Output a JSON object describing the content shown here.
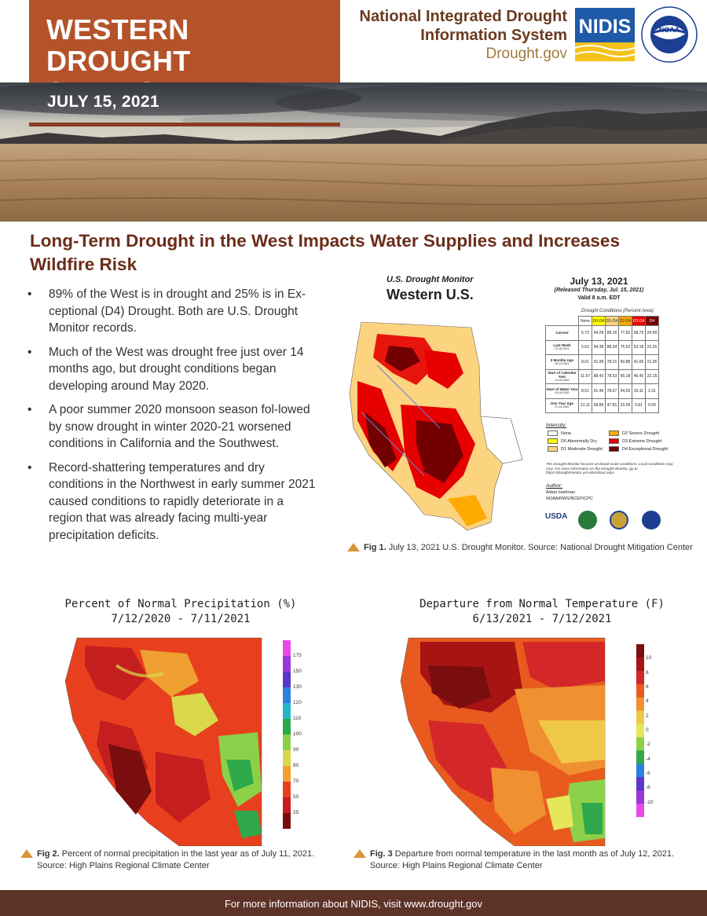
{
  "header": {
    "title_line1": "WESTERN DROUGHT",
    "title_line2": "STATUS UPDATE",
    "org_line1": "National Integrated Drought",
    "org_line2": "Information System",
    "org_url": "Drought.gov",
    "nidis_logo_text": "NIDIS",
    "noaa_logo_text": "NOAA",
    "date": "JULY 15, 2021"
  },
  "headline": "Long-Term Drought in the West Impacts Water Supplies and Increases Wildfire Risk",
  "bullets": [
    "89% of the West is in drought and 25% is in Ex-ceptional (D4) Drought. Both are U.S. Drought Monitor records.",
    "Much of the West was drought free just over 14 months ago, but drought conditions began developing around May 2020.",
    "A poor summer 2020 monsoon season fol-lowed by snow drought in winter 2020-21 worsened conditions in California and the Southwest.",
    "Record-shattering temperatures and dry conditions in the Northwest in early summer 2021 caused conditions to rapidly deteriorate in a region that was already facing multi-year precipitation deficits."
  ],
  "fig1": {
    "usdm_label": "U.S. Drought Monitor",
    "region": "Western U.S.",
    "date": "July 13, 2021",
    "released": "(Released Thursday, Jul. 15, 2021)",
    "valid": "Valid 8 a.m. EDT",
    "table_caption": "Drought Conditions (Percent Area)",
    "columns": [
      "None",
      "D0-D4",
      "D1-D4",
      "D2-D4",
      "D3-D4",
      "D4"
    ],
    "column_colors": [
      "#ffffff",
      "#ffff00",
      "#fcd37f",
      "#ffaa00",
      "#e60000",
      "#730000"
    ],
    "rows": [
      {
        "label": "Current",
        "date": "",
        "values": [
          "5.72",
          "94.28",
          "89.16",
          "77.82",
          "58.75",
          "24.58"
        ]
      },
      {
        "label": "Last Week",
        "date": "07-06-2021",
        "values": [
          "5.62",
          "94.38",
          "88.34",
          "75.52",
          "53.18",
          "23.35"
        ]
      },
      {
        "label": "3 Months Ago",
        "date": "04-13-2021",
        "values": [
          "8.01",
          "91.99",
          "78.21",
          "60.88",
          "41.65",
          "21.06"
        ]
      },
      {
        "label": "Start of Calendar Year",
        "date": "12-29-2020",
        "values": [
          "11.57",
          "88.43",
          "78.53",
          "65.18",
          "46.45",
          "22.15"
        ]
      },
      {
        "label": "Start of Water Year",
        "date": "09-29-2020",
        "values": [
          "8.51",
          "91.49",
          "78.07",
          "54.55",
          "33.11",
          "2.31"
        ]
      },
      {
        "label": "One Year Ago",
        "date": "07-14-2020",
        "values": [
          "31.11",
          "68.89",
          "47.81",
          "23.99",
          "5.81",
          "0.00"
        ]
      }
    ],
    "intensity_title": "Intensity:",
    "legend": [
      {
        "label": "None",
        "color": "#ffffff"
      },
      {
        "label": "D0 Abnormally Dry",
        "color": "#ffff00"
      },
      {
        "label": "D1 Moderate Drought",
        "color": "#fcd37f"
      },
      {
        "label": "D2 Severe Drought",
        "color": "#ffaa00"
      },
      {
        "label": "D3 Extreme Drought",
        "color": "#e60000"
      },
      {
        "label": "D4 Exceptional Drought",
        "color": "#730000"
      }
    ],
    "note": "The Drought Monitor focuses on broad-scale conditions. Local conditions may vary. For more information on the Drought Monitor, go to https://droughtmonitor.unl.edu/About.aspx",
    "author_label": "Author:",
    "author_name": "Adam Hartman",
    "author_org": "NOAA/NWS/NCEP/CPC",
    "usda_text": "USDA",
    "caption_bold": "Fig 1.",
    "caption": " July 13, 2021 U.S. Drought Monitor. Source: National Drought Mitigation Center"
  },
  "fig2": {
    "title_line1": "Percent of Normal Precipitation (%)",
    "title_line2": "7/12/2020 - 7/11/2021",
    "scale": [
      "175",
      "150",
      "130",
      "120",
      "110",
      "100",
      "90",
      "80",
      "70",
      "50",
      "25"
    ],
    "scale_colors": [
      "#e64be6",
      "#9b38d8",
      "#5a37c8",
      "#2f7fe0",
      "#25b7c8",
      "#2ea84a",
      "#8cd04a",
      "#d8d84a",
      "#f0a030",
      "#e8401e",
      "#c41e1e",
      "#7a0e0e"
    ],
    "caption_bold": "Fig 2.",
    "caption": " Percent of normal precipitation in the last year as of July 11, 2021.",
    "caption_source": "Source: High Plains Regional Climate Center"
  },
  "fig3": {
    "title_line1": "Departure from Normal Temperature (F)",
    "title_line2": "6/13/2021 - 7/12/2021",
    "scale": [
      "10",
      "8",
      "6",
      "4",
      "2",
      "0",
      "-2",
      "-4",
      "-6",
      "-8",
      "-10"
    ],
    "scale_colors": [
      "#7a0e0e",
      "#a81414",
      "#d42828",
      "#e85a1e",
      "#f09030",
      "#f0c848",
      "#e6e65a",
      "#8cd04a",
      "#2ea84a",
      "#2f7fe0",
      "#5a37c8",
      "#9b38d8",
      "#e64be6"
    ],
    "caption_bold": "Fig. 3",
    "caption": "  Departure from normal temperature in the last month as of July 12, 2021.",
    "caption_source": "Source: High Plains Regional Climate Center"
  },
  "footer": "For more information about NIDIS, visit www.drought.gov"
}
